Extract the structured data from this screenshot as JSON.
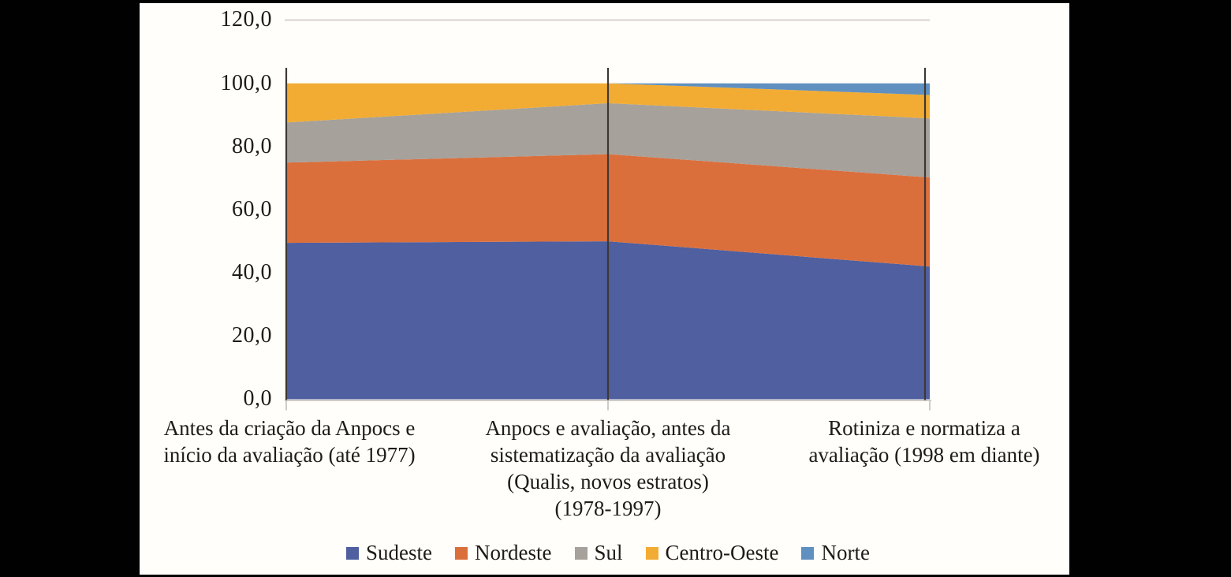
{
  "window": {
    "background": "#010101",
    "panel_background": "#fffefa",
    "text_color": "#201b17"
  },
  "chart_data": {
    "type": "area",
    "stacking": "percent",
    "title": "",
    "categories": [
      "Antes da criação da Anpocs e\ninício da avaliação (até 1977)",
      "Anpocs e avaliação, antes da\nsistematização da avaliação\n(Qualis, novos estratos)\n(1978-1997)",
      "Rotiniza e normatiza a\navaliação (1998 em diante)"
    ],
    "series": [
      {
        "name": "Sudeste",
        "color": "#4f5f9f",
        "values": [
          49.5,
          50.0,
          42.0
        ]
      },
      {
        "name": "Nordeste",
        "color": "#db6f3c",
        "values": [
          25.4,
          27.6,
          28.2
        ]
      },
      {
        "name": "Sul",
        "color": "#a6a19b",
        "values": [
          12.7,
          16.1,
          18.7
        ]
      },
      {
        "name": "Centro-Oeste",
        "color": "#f2ac33",
        "values": [
          12.4,
          6.3,
          7.4
        ]
      },
      {
        "name": "Norte",
        "color": "#6090c0",
        "values": [
          0.0,
          0.0,
          3.7
        ]
      }
    ],
    "ylim": [
      0,
      120
    ],
    "y_tick_step": 20,
    "y_tick_labels": [
      "0,0",
      "20,0",
      "40,0",
      "60,0",
      "80,0",
      "100,0",
      "120,0"
    ],
    "gridlines": {
      "visible_at": [
        120
      ],
      "color": "#d8d3ce"
    },
    "axis_colors": {
      "axis_line": "#cfcbc7",
      "category_marker_lines": "#3e3835"
    },
    "legend_position": "bottom"
  }
}
